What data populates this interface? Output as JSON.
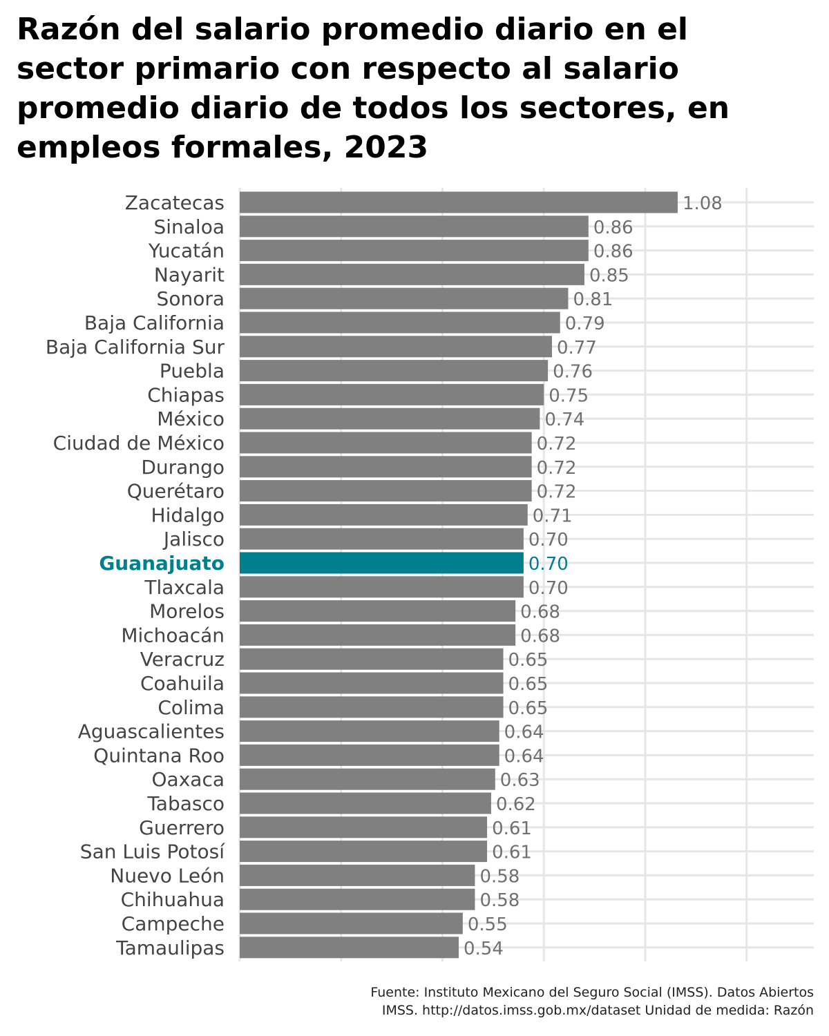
{
  "chart_data": {
    "type": "bar",
    "orientation": "horizontal",
    "title": "Razón del salario promedio diario en el sector primario con respecto al salario promedio diario de todos los sectores, en empleos formales, 2023",
    "categories": [
      "Zacatecas",
      "Sinaloa",
      "Yucatán",
      "Nayarit",
      "Sonora",
      "Baja California",
      "Baja California Sur",
      "Puebla",
      "Chiapas",
      "México",
      "Ciudad de México",
      "Durango",
      "Querétaro",
      "Hidalgo",
      "Jalisco",
      "Guanajuato",
      "Tlaxcala",
      "Morelos",
      "Michoacán",
      "Veracruz",
      "Coahuila",
      "Colima",
      "Aguascalientes",
      "Quintana Roo",
      "Oaxaca",
      "Tabasco",
      "Guerrero",
      "San Luis Potosí",
      "Nuevo León",
      "Chihuahua",
      "Campeche",
      "Tamaulipas"
    ],
    "values": [
      1.08,
      0.86,
      0.86,
      0.85,
      0.81,
      0.79,
      0.77,
      0.76,
      0.75,
      0.74,
      0.72,
      0.72,
      0.72,
      0.71,
      0.7,
      0.7,
      0.7,
      0.68,
      0.68,
      0.65,
      0.65,
      0.65,
      0.64,
      0.64,
      0.63,
      0.62,
      0.61,
      0.61,
      0.58,
      0.58,
      0.55,
      0.54
    ],
    "value_labels": [
      "1.08",
      "0.86",
      "0.86",
      "0.85",
      "0.81",
      "0.79",
      "0.77",
      "0.76",
      "0.75",
      "0.74",
      "0.72",
      "0.72",
      "0.72",
      "0.71",
      "0.70",
      "0.70",
      "0.70",
      "0.68",
      "0.68",
      "0.65",
      "0.65",
      "0.65",
      "0.64",
      "0.64",
      "0.63",
      "0.62",
      "0.61",
      "0.61",
      "0.58",
      "0.58",
      "0.55",
      "0.54"
    ],
    "highlight": "Guanajuato",
    "xlim": [
      0,
      1.4
    ],
    "grid": true,
    "xlabel": "",
    "ylabel": ""
  },
  "colors": {
    "bar": "#808080",
    "highlight": "#00808F",
    "label": "#444444",
    "value_label": "#707070",
    "grid": "#e6e6e6"
  },
  "caption": {
    "line1": "Fuente: Instituto Mexicano del Seguro Social (IMSS). Datos Abiertos",
    "line2": "IMSS. http://datos.imss.gob.mx/dataset Unidad de medida: Razón"
  }
}
